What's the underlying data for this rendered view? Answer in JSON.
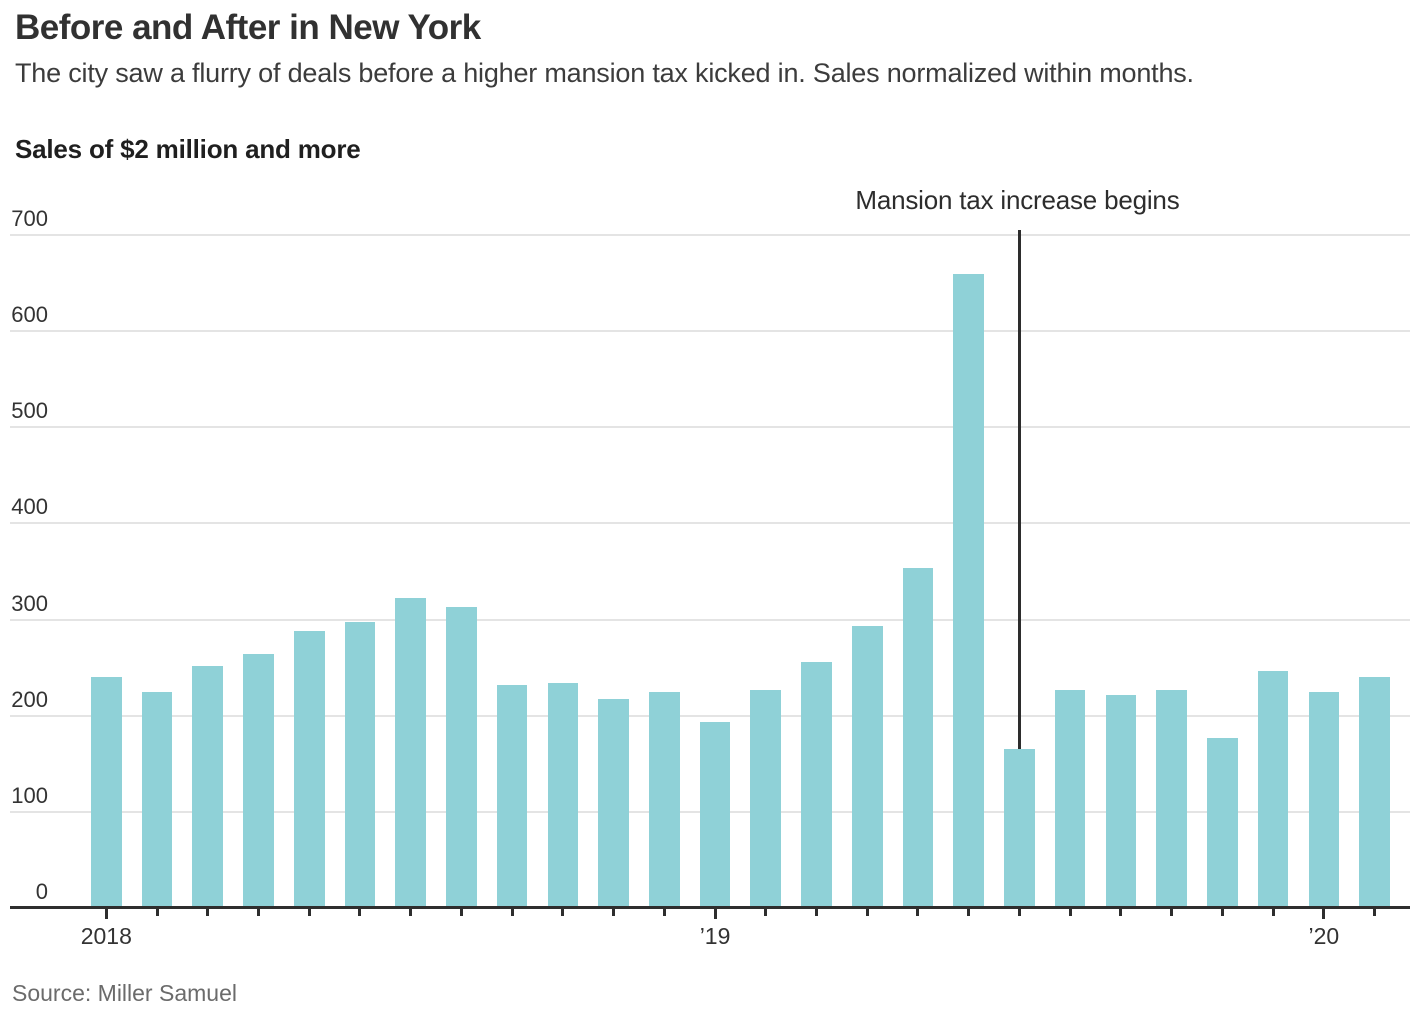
{
  "header": {
    "title": "Before and After in New York",
    "subtitle": "The city saw a flurry of deals before a higher mansion tax kicked in. Sales normalized within months."
  },
  "source_note": "Source: Miller Samuel",
  "colors": {
    "bar": "#8fd1d7",
    "grid": "#e4e4e4",
    "axis": "#2e2e2e",
    "tick": "#2e2e2e",
    "annotation_line": "#2d2d2d",
    "axis_label": "#333333",
    "source_text": "#6b6b6b"
  },
  "chart_data": {
    "type": "bar",
    "title": "Sales of $2 million and more",
    "categories": [
      "Jan 2018",
      "Feb 2018",
      "Mar 2018",
      "Apr 2018",
      "May 2018",
      "Jun 2018",
      "Jul 2018",
      "Aug 2018",
      "Sep 2018",
      "Oct 2018",
      "Nov 2018",
      "Dec 2018",
      "Jan 2019",
      "Feb 2019",
      "Mar 2019",
      "Apr 2019",
      "May 2019",
      "Jun 2019",
      "Jul 2019",
      "Aug 2019",
      "Sep 2019",
      "Oct 2019",
      "Nov 2019",
      "Dec 2019",
      "Jan 2020",
      "Feb 2020"
    ],
    "values": [
      240,
      225,
      252,
      264,
      288,
      297,
      322,
      313,
      232,
      234,
      217,
      225,
      193,
      227,
      256,
      293,
      354,
      659,
      165,
      227,
      222,
      227,
      177,
      246,
      225,
      240
    ],
    "xlabel": "",
    "ylabel": "",
    "ylim": [
      0,
      700
    ],
    "yticks": [
      0,
      100,
      200,
      300,
      400,
      500,
      600,
      700
    ],
    "grid": true,
    "legend_position": "none",
    "x_year_ticks": [
      {
        "index": 0,
        "label": "2018"
      },
      {
        "index": 12,
        "label": "’19"
      },
      {
        "index": 24,
        "label": "’20"
      }
    ],
    "annotation": {
      "text": "Mansion tax increase begins",
      "at_index": 18
    }
  }
}
